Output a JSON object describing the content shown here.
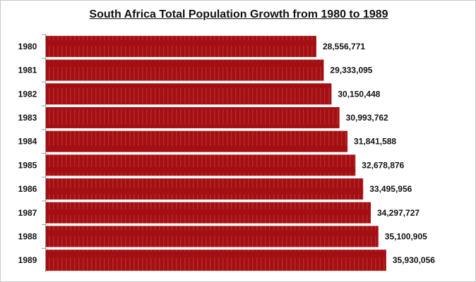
{
  "chart_data": {
    "type": "bar",
    "orientation": "horizontal",
    "title": "South Africa Total Population Growth from 1980 to 1989",
    "xlabel": "",
    "ylabel": "",
    "categories": [
      "1980",
      "1981",
      "1982",
      "1983",
      "1984",
      "1985",
      "1986",
      "1987",
      "1988",
      "1989"
    ],
    "values": [
      28556771,
      29333095,
      30150448,
      30993762,
      31841588,
      32678876,
      33495956,
      34297727,
      35100905,
      35930056
    ],
    "data_labels": [
      "28,556,771",
      "29,333,095",
      "30,150,448",
      "30,993,762",
      "31,841,588",
      "32,678,876",
      "33,495,956",
      "34,297,727",
      "35,100,905",
      "35,930,056"
    ],
    "xlim": [
      0,
      45000000
    ],
    "grid": false,
    "legend": "none",
    "colors": {
      "bar": "#a30f12",
      "bar_stripe": "#b5272a"
    }
  }
}
